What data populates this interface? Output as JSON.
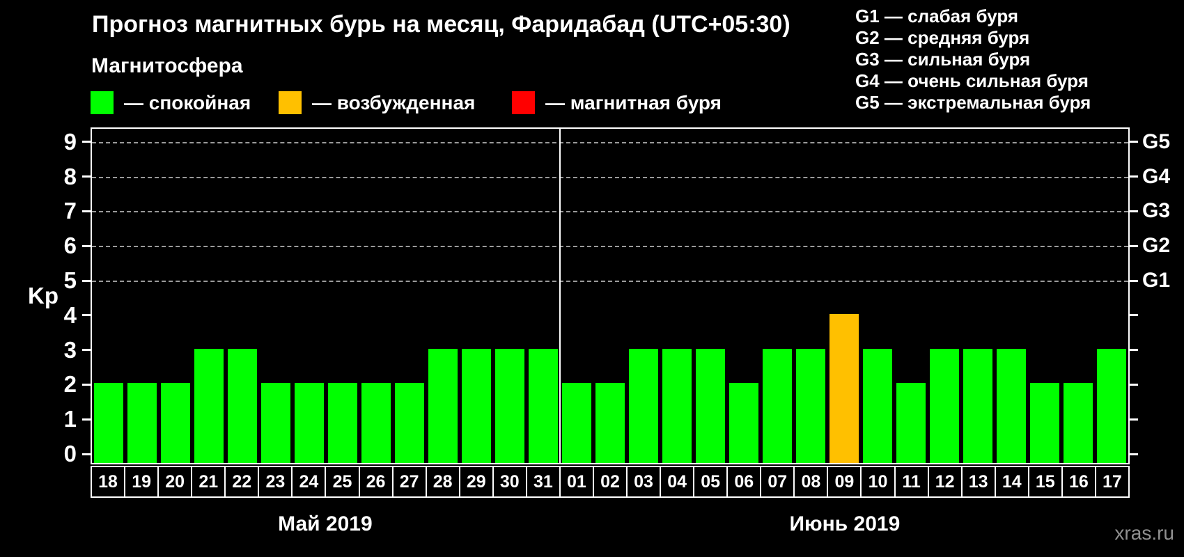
{
  "header": {
    "title": "Прогноз магнитных бурь на месяц, Фаридабад (UTC+05:30)",
    "legend_title": "Магнитосфера"
  },
  "magnetosphere_legend": [
    {
      "key": "quiet",
      "color": "#00ff00",
      "label": "— спокойная"
    },
    {
      "key": "excited",
      "color": "#ffc000",
      "label": "— возбужденная"
    },
    {
      "key": "storm",
      "color": "#ff0000",
      "label": "— магнитная буря"
    }
  ],
  "g_scale_legend": [
    "G1 — слабая буря",
    "G2 — средняя буря",
    "G3 — сильная буря",
    "G4 — очень сильная буря",
    "G5 — экстремальная буря"
  ],
  "watermark": "xras.ru",
  "chart_data": {
    "type": "bar",
    "title": "Прогноз магнитных бурь на месяц, Фаридабад (UTC+05:30)",
    "ylabel": "Kp",
    "ylim": [
      0,
      9.4
    ],
    "yticks": [
      0,
      1,
      2,
      3,
      4,
      5,
      6,
      7,
      8,
      9
    ],
    "gridlines_at": [
      5,
      6,
      7,
      8,
      9
    ],
    "legend_position": "top",
    "right_axis_labels": [
      {
        "value": 5,
        "label": "G1"
      },
      {
        "value": 6,
        "label": "G2"
      },
      {
        "value": 7,
        "label": "G3"
      },
      {
        "value": 8,
        "label": "G4"
      },
      {
        "value": 9,
        "label": "G5"
      }
    ],
    "months": [
      {
        "label": "Май 2019",
        "days": 14
      },
      {
        "label": "Июнь 2019",
        "days": 17
      }
    ],
    "categories": [
      "18",
      "19",
      "20",
      "21",
      "22",
      "23",
      "24",
      "25",
      "26",
      "27",
      "28",
      "29",
      "30",
      "31",
      "01",
      "02",
      "03",
      "04",
      "05",
      "06",
      "07",
      "08",
      "09",
      "10",
      "11",
      "12",
      "13",
      "14",
      "15",
      "16",
      "17"
    ],
    "series": [
      {
        "name": "Kp",
        "values": [
          2,
          2,
          2,
          3,
          3,
          2,
          2,
          2,
          2,
          2,
          3,
          3,
          3,
          3,
          2,
          2,
          3,
          3,
          3,
          2,
          3,
          3,
          4,
          3,
          2,
          3,
          3,
          3,
          2,
          2,
          3
        ],
        "states": [
          "quiet",
          "quiet",
          "quiet",
          "quiet",
          "quiet",
          "quiet",
          "quiet",
          "quiet",
          "quiet",
          "quiet",
          "quiet",
          "quiet",
          "quiet",
          "quiet",
          "quiet",
          "quiet",
          "quiet",
          "quiet",
          "quiet",
          "quiet",
          "quiet",
          "quiet",
          "excited",
          "quiet",
          "quiet",
          "quiet",
          "quiet",
          "quiet",
          "quiet",
          "quiet",
          "quiet"
        ]
      }
    ]
  }
}
